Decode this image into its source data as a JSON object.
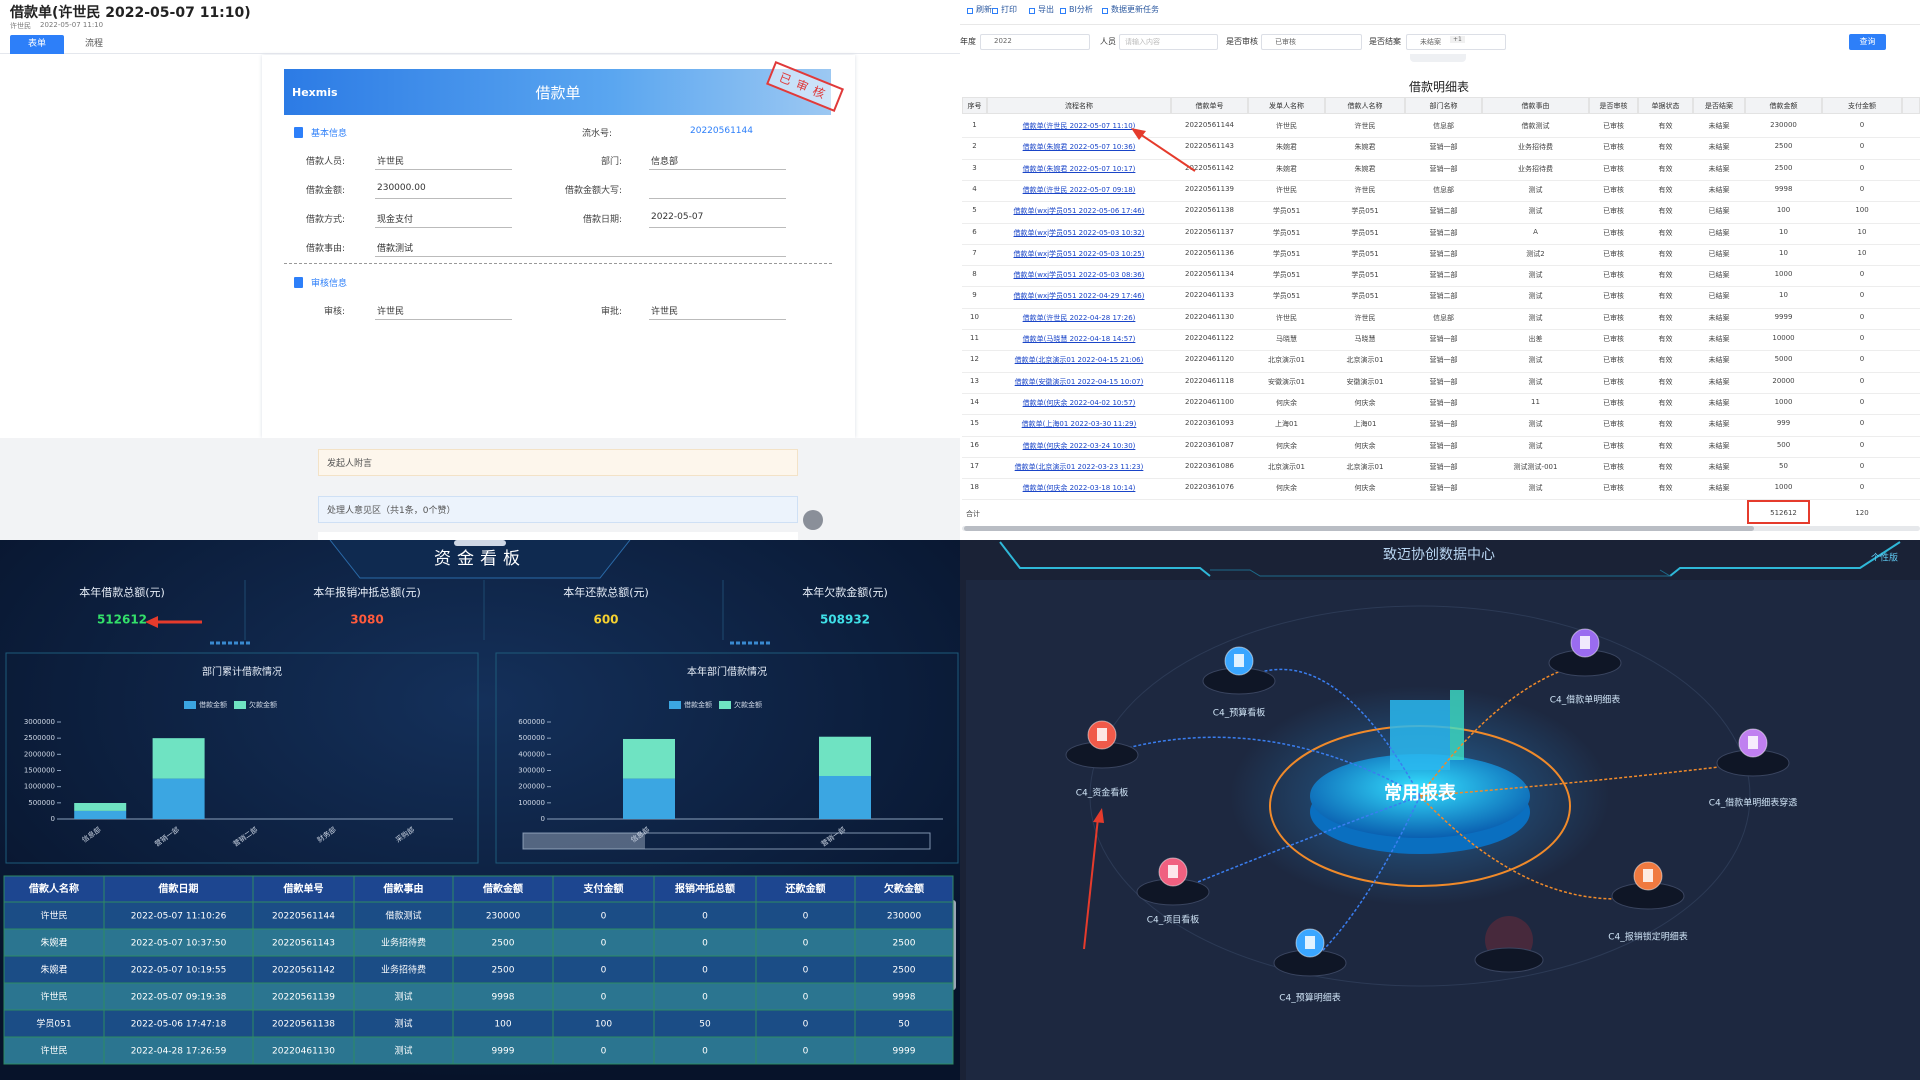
{
  "form": {
    "title": "借款单(许世民 2022-05-07 11:10)",
    "meta": [
      "许世民",
      "2022-05-07 11:10"
    ],
    "tabs": [
      "表单",
      "流程"
    ],
    "logo": "Hexmis",
    "heading": "借款单",
    "stamp": "已审核",
    "sections": [
      "基本信息",
      "审核信息"
    ],
    "serial": {
      "label": "流水号:",
      "value": "20220561144"
    },
    "fields": [
      {
        "label": "借款人员:",
        "value": "许世民"
      },
      {
        "label": "部门:",
        "value": "信息部"
      },
      {
        "label": "借款金额:",
        "value": "230000.00"
      },
      {
        "label": "借款金额大写:"
      },
      {
        "label": "借款方式:",
        "value": "现金支付"
      },
      {
        "label": "借款日期:",
        "value": "2022-05-07"
      },
      {
        "label": "借款事由:",
        "value": "借款测试"
      }
    ],
    "approvals": [
      {
        "label": "审核:",
        "value": "许世民"
      },
      {
        "label": "审批:",
        "value": "许世民"
      }
    ],
    "notes": [
      "发起人附言",
      "处理人意见区（共1条，0个赞）"
    ]
  },
  "report": {
    "toolbar": [
      "刷新",
      "打印",
      "导出",
      "BI分析",
      "数据更新任务"
    ],
    "filters": [
      {
        "label": "年度",
        "value": "2022"
      },
      {
        "label": "人员",
        "placeholder": "请输入内容"
      },
      {
        "label": "是否审核",
        "value": "已审核"
      },
      {
        "label": "是否结案",
        "value": "未结案",
        "extra": "+1"
      }
    ],
    "search": "查询",
    "title": "借款明细表",
    "columns": [
      "序号",
      "流程名称",
      "借款单号",
      "发单人名称",
      "借款人名称",
      "部门名称",
      "借款事由",
      "是否审核",
      "单据状态",
      "是否结案",
      "借款金额",
      "支付金额"
    ],
    "rows": [
      [
        1,
        "借款单(许世民 2022-05-07 11:10)",
        "20220561144",
        "许世民",
        "许世民",
        "信息部",
        "借款测试",
        "已审核",
        "有效",
        "未结案",
        230000,
        0
      ],
      [
        2,
        "借款单(朱婉君 2022-05-07 10:36)",
        "20220561143",
        "朱婉君",
        "朱婉君",
        "营销一部",
        "业务招待费",
        "已审核",
        "有效",
        "未结案",
        2500,
        0
      ],
      [
        3,
        "借款单(朱婉君 2022-05-07 10:17)",
        "20220561142",
        "朱婉君",
        "朱婉君",
        "营销一部",
        "业务招待费",
        "已审核",
        "有效",
        "未结案",
        2500,
        0
      ],
      [
        4,
        "借款单(许世民 2022-05-07 09:18)",
        "20220561139",
        "许世民",
        "许世民",
        "信息部",
        "测试",
        "已审核",
        "有效",
        "未结案",
        9998,
        0
      ],
      [
        5,
        "借款单(wxj学员051 2022-05-06 17:46)",
        "20220561138",
        "学员051",
        "学员051",
        "营销二部",
        "测试",
        "已审核",
        "有效",
        "已结案",
        100,
        100
      ],
      [
        6,
        "借款单(wxj学员051 2022-05-03 10:32)",
        "20220561137",
        "学员051",
        "学员051",
        "营销二部",
        "A",
        "已审核",
        "有效",
        "已结案",
        10,
        10
      ],
      [
        7,
        "借款单(wxj学员051 2022-05-03 10:25)",
        "20220561136",
        "学员051",
        "学员051",
        "营销二部",
        "测试2",
        "已审核",
        "有效",
        "已结案",
        10,
        10
      ],
      [
        8,
        "借款单(wxj学员051 2022-05-03 08:36)",
        "20220561134",
        "学员051",
        "学员051",
        "营销二部",
        "测试",
        "已审核",
        "有效",
        "已结案",
        1000,
        0
      ],
      [
        9,
        "借款单(wxj学员051 2022-04-29 17:46)",
        "20220461133",
        "学员051",
        "学员051",
        "营销二部",
        "测试",
        "已审核",
        "有效",
        "已结案",
        10,
        0
      ],
      [
        10,
        "借款单(许世民 2022-04-28 17:26)",
        "20220461130",
        "许世民",
        "许世民",
        "信息部",
        "测试",
        "已审核",
        "有效",
        "未结案",
        9999,
        0
      ],
      [
        11,
        "借款单(马晓慧 2022-04-18 14:57)",
        "20220461122",
        "马晓慧",
        "马晓慧",
        "营销一部",
        "出差",
        "已审核",
        "有效",
        "未结案",
        10000,
        0
      ],
      [
        12,
        "借款单(北京演示01 2022-04-15 21:06)",
        "20220461120",
        "北京演示01",
        "北京演示01",
        "营销一部",
        "测试",
        "已审核",
        "有效",
        "未结案",
        5000,
        0
      ],
      [
        13,
        "借款单(安徽演示01 2022-04-15 10:07)",
        "20220461118",
        "安徽演示01",
        "安徽演示01",
        "营销一部",
        "测试",
        "已审核",
        "有效",
        "未结案",
        20000,
        0
      ],
      [
        14,
        "借款单(何庆余 2022-04-02 10:57)",
        "20220461100",
        "何庆余",
        "何庆余",
        "营销一部",
        "11",
        "已审核",
        "有效",
        "未结案",
        1000,
        0
      ],
      [
        15,
        "借款单(上海01 2022-03-30 11:29)",
        "20220361093",
        "上海01",
        "上海01",
        "营销一部",
        "测试",
        "已审核",
        "有效",
        "未结案",
        999,
        0
      ],
      [
        16,
        "借款单(何庆余 2022-03-24 10:30)",
        "20220361087",
        "何庆余",
        "何庆余",
        "营销一部",
        "测试",
        "已审核",
        "有效",
        "未结案",
        500,
        0
      ],
      [
        17,
        "借款单(北京演示01 2022-03-23 11:23)",
        "20220361086",
        "北京演示01",
        "北京演示01",
        "营销一部",
        "测试测试-001",
        "已审核",
        "有效",
        "未结案",
        50,
        0
      ],
      [
        18,
        "借款单(何庆余 2022-03-18 10:14)",
        "20220361076",
        "何庆余",
        "何庆余",
        "营销一部",
        "测试",
        "已审核",
        "有效",
        "未结案",
        1000,
        0
      ]
    ],
    "total": {
      "label": "合计",
      "amount": 512612,
      "paid": 120
    }
  },
  "dashboard": {
    "title": "资金看板",
    "kpis": [
      {
        "label": "本年借款总额(元)",
        "value": 512612,
        "color": "#33e06a"
      },
      {
        "label": "本年报销冲抵总额(元)",
        "value": 3080,
        "color": "#ff5a3c"
      },
      {
        "label": "本年还款总额(元)",
        "value": 600,
        "color": "#f5d130"
      },
      {
        "label": "本年欠款金额(元)",
        "value": 508932,
        "color": "#3fe0e8"
      }
    ],
    "table": {
      "columns": [
        "借款人名称",
        "借款日期",
        "借款单号",
        "借款事由",
        "借款金额",
        "支付金额",
        "报销冲抵总额",
        "还款金额",
        "欠款金额"
      ],
      "rows": [
        [
          "许世民",
          "2022-05-07 11:10:26",
          "20220561144",
          "借款测试",
          230000,
          0,
          0,
          0,
          230000
        ],
        [
          "朱婉君",
          "2022-05-07 10:37:50",
          "20220561143",
          "业务招待费",
          2500,
          0,
          0,
          0,
          2500
        ],
        [
          "朱婉君",
          "2022-05-07 10:19:55",
          "20220561142",
          "业务招待费",
          2500,
          0,
          0,
          0,
          2500
        ],
        [
          "许世民",
          "2022-05-07 09:19:38",
          "20220561139",
          "测试",
          9998,
          0,
          0,
          0,
          9998
        ],
        [
          "学员051",
          "2022-05-06 17:47:18",
          "20220561138",
          "测试",
          100,
          100,
          50,
          0,
          50
        ],
        [
          "许世民",
          "2022-04-28 17:26:59",
          "20220461130",
          "测试",
          9999,
          0,
          0,
          0,
          9999
        ]
      ]
    }
  },
  "chart_data": [
    {
      "type": "bar",
      "stacked": true,
      "title": "部门累计借款情况",
      "categories": [
        "信息部",
        "营销一部",
        "营销二部",
        "财务部",
        "采购部"
      ],
      "series": [
        {
          "name": "借款金额",
          "color": "#3ba6e2",
          "values": [
            250000,
            1250000,
            0,
            0,
            0
          ]
        },
        {
          "name": "欠款金额",
          "color": "#6fe3c2",
          "values": [
            245000,
            1250000,
            0,
            0,
            0
          ]
        }
      ],
      "ylim": [
        0,
        3000000
      ],
      "yticks": [
        0,
        500000,
        1000000,
        1500000,
        2000000,
        2500000,
        3000000
      ]
    },
    {
      "type": "bar",
      "stacked": true,
      "title": "本年部门借款情况",
      "categories": [
        "信息部",
        "营销一部"
      ],
      "series": [
        {
          "name": "借款金额",
          "color": "#3ba6e2",
          "values": [
            250000,
            266000
          ]
        },
        {
          "name": "欠款金额",
          "color": "#6fe3c2",
          "values": [
            245000,
            243000
          ]
        }
      ],
      "ylim": [
        0,
        600000
      ],
      "yticks": [
        0,
        100000,
        200000,
        300000,
        400000,
        500000,
        600000
      ]
    }
  ],
  "data_center": {
    "title": "致迈协创数据中心",
    "corner": "个性版",
    "hub": "常用报表",
    "nodes": [
      {
        "label": "C4_预算看板"
      },
      {
        "label": "C4_借款单明细表"
      },
      {
        "label": "C4_资金看板"
      },
      {
        "label": "C4_借款单明细表穿透"
      },
      {
        "label": "C4_项目看板"
      },
      {
        "label": "C4_报销锁定明细表"
      },
      {
        "label": "C4_预算明细表"
      }
    ]
  }
}
